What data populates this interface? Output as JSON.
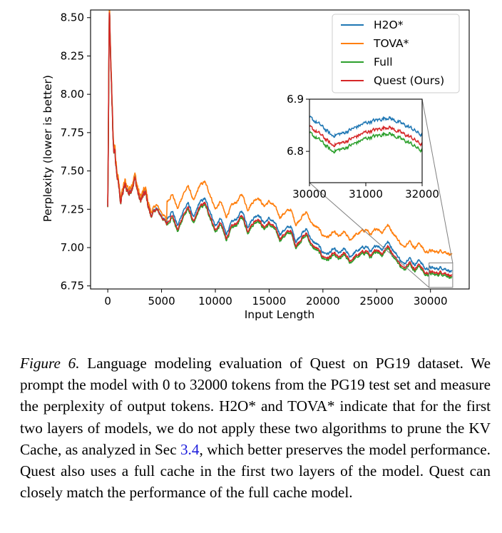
{
  "chart_data": {
    "type": "line",
    "title": "",
    "xlabel": "Input Length",
    "ylabel": "Perplexity (lower is better)",
    "xlim": [
      -1600,
      33600
    ],
    "ylim": [
      6.73,
      8.55
    ],
    "xticks": [
      0,
      5000,
      10000,
      15000,
      20000,
      25000,
      30000
    ],
    "yticks": [
      6.75,
      7.0,
      7.25,
      7.5,
      7.75,
      8.0,
      8.25,
      8.5
    ],
    "xtick_labels": [
      "0",
      "5000",
      "10000",
      "15000",
      "20000",
      "25000",
      "30000"
    ],
    "ytick_labels": [
      "6.75",
      "7.00",
      "7.25",
      "7.50",
      "7.75",
      "8.00",
      "8.25",
      "8.50"
    ],
    "grid": false,
    "legend_position": "top-right",
    "series": [
      {
        "name": "H2O*",
        "color": "#1f77b4",
        "key": "h2o"
      },
      {
        "name": "TOVA*",
        "color": "#ff7f0e",
        "key": "tova"
      },
      {
        "name": "Full",
        "color": "#2ca02c",
        "key": "full"
      },
      {
        "name": "Quest (Ours)",
        "color": "#d62728",
        "key": "quest"
      }
    ],
    "full_keypoints": {
      "x": [
        0,
        150,
        300,
        500,
        800,
        1200,
        1600,
        2000,
        2500,
        3000,
        3500,
        4000,
        4500,
        5000,
        5500,
        6000,
        6500,
        7000,
        7500,
        8000,
        8500,
        9000,
        9500,
        10000,
        10500,
        11000,
        11500,
        12000,
        12500,
        13000,
        13500,
        14000,
        14500,
        15000,
        15500,
        16000,
        16500,
        17000,
        17500,
        18000,
        18500,
        19000,
        19500,
        20000,
        20500,
        21000,
        21500,
        22000,
        22500,
        23000,
        23500,
        24000,
        24500,
        25000,
        25500,
        26000,
        26500,
        27000,
        27500,
        28000,
        28500,
        29000,
        29500,
        30000,
        30500,
        31000,
        31500,
        32000
      ],
      "y": [
        7.25,
        8.55,
        8.1,
        7.7,
        7.5,
        7.3,
        7.4,
        7.35,
        7.45,
        7.3,
        7.35,
        7.2,
        7.25,
        7.2,
        7.15,
        7.2,
        7.1,
        7.2,
        7.25,
        7.15,
        7.25,
        7.28,
        7.2,
        7.1,
        7.15,
        7.05,
        7.12,
        7.15,
        7.2,
        7.1,
        7.15,
        7.18,
        7.12,
        7.15,
        7.12,
        7.05,
        7.08,
        7.1,
        7.0,
        7.05,
        7.08,
        7.0,
        6.98,
        6.93,
        6.92,
        6.95,
        6.92,
        6.95,
        6.9,
        6.93,
        6.95,
        6.97,
        6.93,
        6.98,
        6.95,
        7.0,
        6.95,
        6.9,
        6.85,
        6.9,
        6.85,
        6.88,
        6.82,
        6.83,
        6.82,
        6.83,
        6.82,
        6.8
      ]
    },
    "offsets": {
      "h2o": 0.04,
      "tova": 0.15,
      "full": 0.0,
      "quest": 0.012
    },
    "inset": {
      "xlim": [
        30000,
        32000
      ],
      "ylim": [
        6.74,
        6.9
      ],
      "xticks": [
        30000,
        31000,
        32000
      ],
      "yticks": [
        6.8,
        6.9
      ],
      "xtick_labels": [
        "30000",
        "31000",
        "32000"
      ],
      "ytick_labels": [
        "6.8",
        "6.9"
      ],
      "keypoints_full": {
        "x": [
          30000,
          30200,
          30400,
          30600,
          30800,
          31000,
          31200,
          31400,
          31600,
          31800,
          32000
        ],
        "y": [
          6.835,
          6.82,
          6.8,
          6.805,
          6.815,
          6.825,
          6.83,
          6.835,
          6.825,
          6.815,
          6.8
        ]
      },
      "offsets": {
        "h2o": 0.03,
        "full": 0.0,
        "quest": 0.012
      }
    }
  },
  "caption": {
    "figure_label": "Figure 6.",
    "text_before_ref": " Language modeling evaluation of Quest on PG19 dataset. We prompt the model with 0 to 32000 tokens from the PG19 test set and measure the perplexity of output tokens. H2O* and TOVA* indicate that for the first two layers of models, we do not apply these two algorithms to prune the KV Cache, as analyzed in Sec ",
    "ref": "3.4",
    "text_after_ref": ", which better preserves the model performance. Quest also uses a full cache in the first two layers of the model. Quest can closely match the performance of the full cache model."
  }
}
